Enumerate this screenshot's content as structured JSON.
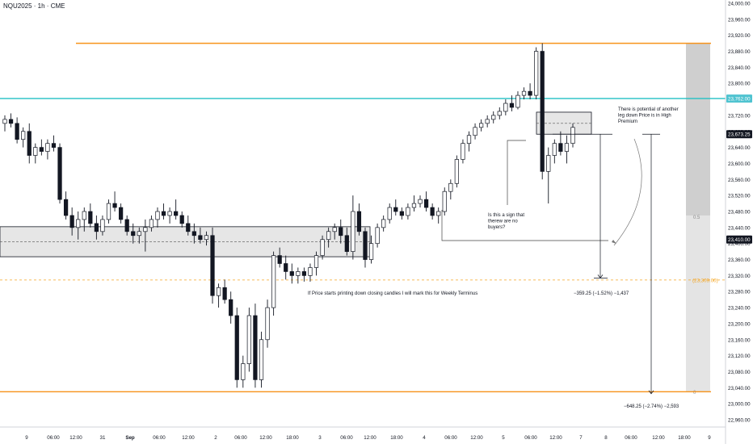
{
  "symbol_label": "NQU2025 · 1h · CME",
  "colors": {
    "up_body": "#ffffff",
    "down_body": "#131722",
    "wick": "#131722",
    "orange_line": "#f7931a",
    "cyan_line": "#22c1c3",
    "zone_fill": "#e6e6e6",
    "zone_stroke": "#131722",
    "dashed_orange": "#f5a623",
    "annotation": "#131722",
    "price_tag_black": "#131722",
    "price_tag_cyan": "#4fc3d0"
  },
  "chart_data": {
    "type": "candlestick",
    "title": "",
    "y_axis": {
      "min": 22960,
      "max": 24000,
      "ticks": [
        "24,000.00",
        "23,960.00",
        "23,920.00",
        "23,880.00",
        "23,840.00",
        "23,800.00",
        "23,760.00",
        "23,720.00",
        "23,680.00",
        "23,640.00",
        "23,600.00",
        "23,560.00",
        "23,520.00",
        "23,480.00",
        "23,440.00",
        "23,400.00",
        "23,360.00",
        "23,320.00",
        "23,280.00",
        "23,240.00",
        "23,200.00",
        "23,160.00",
        "23,120.00",
        "23,080.00",
        "23,040.00",
        "23,000.00",
        "22,960.00"
      ]
    },
    "x_axis": {
      "ticks": [
        "9",
        "06:00",
        "12:00",
        "31",
        "Sep",
        "06:00",
        "12:00",
        "2",
        "06:00",
        "12:00",
        "18:00",
        "3",
        "06:00",
        "12:00",
        "18:00",
        "4",
        "06:00",
        "12:00",
        "5",
        "06:00",
        "12:00",
        "7",
        "8",
        "06:00",
        "12:00",
        "18:00",
        "9"
      ],
      "bold_ticks": [
        "Sep"
      ]
    },
    "candles": [
      {
        "o": 23700,
        "h": 23720,
        "l": 23680,
        "c": 23710
      },
      {
        "o": 23710,
        "h": 23725,
        "l": 23690,
        "c": 23700
      },
      {
        "o": 23700,
        "h": 23715,
        "l": 23650,
        "c": 23660
      },
      {
        "o": 23660,
        "h": 23690,
        "l": 23640,
        "c": 23680
      },
      {
        "o": 23680,
        "h": 23700,
        "l": 23600,
        "c": 23620
      },
      {
        "o": 23620,
        "h": 23650,
        "l": 23600,
        "c": 23640
      },
      {
        "o": 23640,
        "h": 23660,
        "l": 23620,
        "c": 23630
      },
      {
        "o": 23630,
        "h": 23660,
        "l": 23610,
        "c": 23650
      },
      {
        "o": 23650,
        "h": 23670,
        "l": 23630,
        "c": 23640
      },
      {
        "o": 23640,
        "h": 23650,
        "l": 23500,
        "c": 23510
      },
      {
        "o": 23510,
        "h": 23530,
        "l": 23460,
        "c": 23470
      },
      {
        "o": 23470,
        "h": 23490,
        "l": 23420,
        "c": 23440
      },
      {
        "o": 23440,
        "h": 23480,
        "l": 23410,
        "c": 23460
      },
      {
        "o": 23460,
        "h": 23490,
        "l": 23430,
        "c": 23480
      },
      {
        "o": 23480,
        "h": 23500,
        "l": 23440,
        "c": 23450
      },
      {
        "o": 23450,
        "h": 23470,
        "l": 23410,
        "c": 23430
      },
      {
        "o": 23430,
        "h": 23470,
        "l": 23420,
        "c": 23460
      },
      {
        "o": 23460,
        "h": 23510,
        "l": 23450,
        "c": 23500
      },
      {
        "o": 23500,
        "h": 23530,
        "l": 23480,
        "c": 23490
      },
      {
        "o": 23490,
        "h": 23500,
        "l": 23450,
        "c": 23460
      },
      {
        "o": 23460,
        "h": 23470,
        "l": 23420,
        "c": 23430
      },
      {
        "o": 23430,
        "h": 23450,
        "l": 23400,
        "c": 23420
      },
      {
        "o": 23420,
        "h": 23440,
        "l": 23400,
        "c": 23430
      },
      {
        "o": 23430,
        "h": 23460,
        "l": 23380,
        "c": 23440
      },
      {
        "o": 23440,
        "h": 23470,
        "l": 23430,
        "c": 23460
      },
      {
        "o": 23460,
        "h": 23490,
        "l": 23440,
        "c": 23480
      },
      {
        "o": 23480,
        "h": 23500,
        "l": 23460,
        "c": 23470
      },
      {
        "o": 23470,
        "h": 23490,
        "l": 23450,
        "c": 23480
      },
      {
        "o": 23480,
        "h": 23510,
        "l": 23460,
        "c": 23470
      },
      {
        "o": 23470,
        "h": 23480,
        "l": 23440,
        "c": 23450
      },
      {
        "o": 23450,
        "h": 23470,
        "l": 23420,
        "c": 23430
      },
      {
        "o": 23430,
        "h": 23450,
        "l": 23400,
        "c": 23420
      },
      {
        "o": 23420,
        "h": 23440,
        "l": 23400,
        "c": 23410
      },
      {
        "o": 23410,
        "h": 23430,
        "l": 23395,
        "c": 23420
      },
      {
        "o": 23420,
        "h": 23440,
        "l": 23250,
        "c": 23270
      },
      {
        "o": 23270,
        "h": 23300,
        "l": 23240,
        "c": 23290
      },
      {
        "o": 23290,
        "h": 23310,
        "l": 23250,
        "c": 23260
      },
      {
        "o": 23260,
        "h": 23280,
        "l": 23200,
        "c": 23220
      },
      {
        "o": 23220,
        "h": 23240,
        "l": 23040,
        "c": 23060
      },
      {
        "o": 23060,
        "h": 23120,
        "l": 23040,
        "c": 23100
      },
      {
        "o": 23100,
        "h": 23240,
        "l": 23080,
        "c": 23220
      },
      {
        "o": 23220,
        "h": 23250,
        "l": 23040,
        "c": 23060
      },
      {
        "o": 23060,
        "h": 23180,
        "l": 23040,
        "c": 23160
      },
      {
        "o": 23160,
        "h": 23260,
        "l": 23140,
        "c": 23240
      },
      {
        "o": 23240,
        "h": 23380,
        "l": 23220,
        "c": 23370
      },
      {
        "o": 23370,
        "h": 23390,
        "l": 23340,
        "c": 23350
      },
      {
        "o": 23350,
        "h": 23370,
        "l": 23310,
        "c": 23330
      },
      {
        "o": 23330,
        "h": 23350,
        "l": 23300,
        "c": 23320
      },
      {
        "o": 23320,
        "h": 23340,
        "l": 23300,
        "c": 23330
      },
      {
        "o": 23330,
        "h": 23340,
        "l": 23305,
        "c": 23320
      },
      {
        "o": 23320,
        "h": 23350,
        "l": 23305,
        "c": 23340
      },
      {
        "o": 23340,
        "h": 23380,
        "l": 23320,
        "c": 23370
      },
      {
        "o": 23370,
        "h": 23420,
        "l": 23360,
        "c": 23410
      },
      {
        "o": 23410,
        "h": 23440,
        "l": 23390,
        "c": 23430
      },
      {
        "o": 23430,
        "h": 23450,
        "l": 23410,
        "c": 23440
      },
      {
        "o": 23440,
        "h": 23460,
        "l": 23400,
        "c": 23420
      },
      {
        "o": 23420,
        "h": 23440,
        "l": 23370,
        "c": 23380
      },
      {
        "o": 23380,
        "h": 23520,
        "l": 23360,
        "c": 23480
      },
      {
        "o": 23480,
        "h": 23500,
        "l": 23420,
        "c": 23430
      },
      {
        "o": 23430,
        "h": 23440,
        "l": 23340,
        "c": 23360
      },
      {
        "o": 23360,
        "h": 23420,
        "l": 23350,
        "c": 23400
      },
      {
        "o": 23400,
        "h": 23450,
        "l": 23390,
        "c": 23440
      },
      {
        "o": 23440,
        "h": 23470,
        "l": 23430,
        "c": 23460
      },
      {
        "o": 23460,
        "h": 23500,
        "l": 23450,
        "c": 23490
      },
      {
        "o": 23490,
        "h": 23510,
        "l": 23470,
        "c": 23480
      },
      {
        "o": 23480,
        "h": 23490,
        "l": 23460,
        "c": 23470
      },
      {
        "o": 23470,
        "h": 23500,
        "l": 23460,
        "c": 23490
      },
      {
        "o": 23490,
        "h": 23520,
        "l": 23480,
        "c": 23500
      },
      {
        "o": 23500,
        "h": 23520,
        "l": 23490,
        "c": 23510
      },
      {
        "o": 23510,
        "h": 23530,
        "l": 23480,
        "c": 23490
      },
      {
        "o": 23490,
        "h": 23500,
        "l": 23460,
        "c": 23470
      },
      {
        "o": 23470,
        "h": 23490,
        "l": 23450,
        "c": 23480
      },
      {
        "o": 23480,
        "h": 23540,
        "l": 23470,
        "c": 23530
      },
      {
        "o": 23530,
        "h": 23560,
        "l": 23510,
        "c": 23550
      },
      {
        "o": 23550,
        "h": 23620,
        "l": 23540,
        "c": 23610
      },
      {
        "o": 23610,
        "h": 23660,
        "l": 23600,
        "c": 23650
      },
      {
        "o": 23650,
        "h": 23680,
        "l": 23630,
        "c": 23670
      },
      {
        "o": 23670,
        "h": 23700,
        "l": 23660,
        "c": 23690
      },
      {
        "o": 23690,
        "h": 23710,
        "l": 23680,
        "c": 23700
      },
      {
        "o": 23700,
        "h": 23720,
        "l": 23690,
        "c": 23710
      },
      {
        "o": 23710,
        "h": 23730,
        "l": 23700,
        "c": 23720
      },
      {
        "o": 23720,
        "h": 23740,
        "l": 23710,
        "c": 23730
      },
      {
        "o": 23730,
        "h": 23760,
        "l": 23720,
        "c": 23750
      },
      {
        "o": 23750,
        "h": 23770,
        "l": 23730,
        "c": 23740
      },
      {
        "o": 23740,
        "h": 23780,
        "l": 23735,
        "c": 23770
      },
      {
        "o": 23770,
        "h": 23790,
        "l": 23760,
        "c": 23780
      },
      {
        "o": 23780,
        "h": 23800,
        "l": 23760,
        "c": 23770
      },
      {
        "o": 23770,
        "h": 23890,
        "l": 23760,
        "c": 23880
      },
      {
        "o": 23880,
        "h": 23900,
        "l": 23560,
        "c": 23580
      },
      {
        "o": 23580,
        "h": 23640,
        "l": 23500,
        "c": 23620
      },
      {
        "o": 23620,
        "h": 23660,
        "l": 23600,
        "c": 23650
      },
      {
        "o": 23650,
        "h": 23680,
        "l": 23620,
        "c": 23630
      },
      {
        "o": 23630,
        "h": 23670,
        "l": 23600,
        "c": 23650
      },
      {
        "o": 23650,
        "h": 23700,
        "l": 23640,
        "c": 23690
      }
    ],
    "levels": [
      {
        "name": "top-orange",
        "price": 23900
      },
      {
        "name": "cyan",
        "price": 23762
      },
      {
        "name": "dashed-orange",
        "price": 23309
      },
      {
        "name": "bottom-orange",
        "price": 23030
      }
    ],
    "demand_zone": {
      "top": 23442,
      "bottom": 23367
    },
    "premium_zone": {
      "top": 23728,
      "bottom": 23673
    },
    "price_tags": [
      {
        "label": "23,762.00",
        "price": 23762,
        "style": "cyan"
      },
      {
        "label": "23,673.25",
        "price": 23673,
        "style": "black"
      },
      {
        "label": "23,410.00",
        "price": 23410,
        "style": "black"
      },
      {
        "label": "(23,309.00)",
        "price": 23309,
        "style": "dashed"
      }
    ],
    "measures": [
      {
        "label": "−359.25 (−1.52%) −1,437",
        "from": 23673,
        "to": 23314
      },
      {
        "label": "−648.25 (−2.74%) −2,593",
        "from": 23673,
        "to": 23025
      }
    ],
    "annotations": {
      "premium_note": [
        "There is potential of another",
        "leg down Price is in High",
        "Premium"
      ],
      "buyers_note": [
        "Is this a sign that",
        "therew are no",
        "buyers?"
      ],
      "weekly_note": "If Price starts printing down closing candles I will mark this for Weekly Terminus"
    },
    "side_panel_labels": [
      "0.5",
      "0"
    ]
  }
}
